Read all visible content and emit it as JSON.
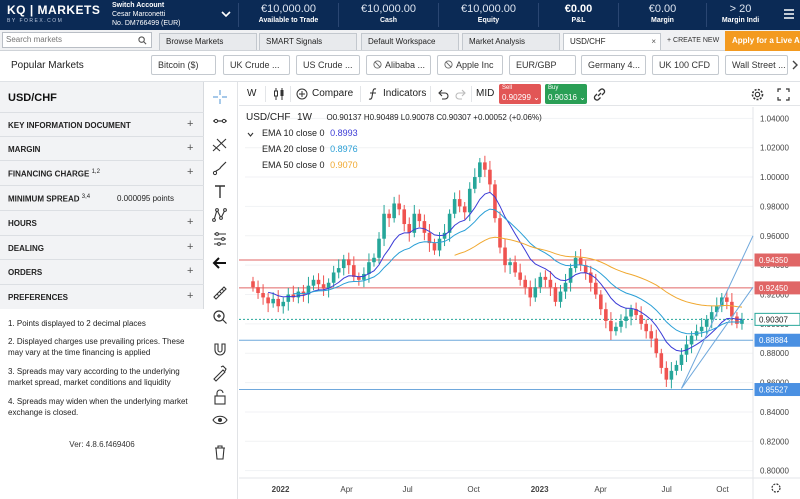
{
  "app": {
    "logo": "KQ | MARKETS",
    "logo_sub": "BY FOREX.COM"
  },
  "account": {
    "switch_label": "Switch Account",
    "name": "Cesar Marconetti",
    "number": "No. DM766499 (EUR)"
  },
  "metrics": [
    {
      "value": "€10,000.00",
      "label": "Available to Trade"
    },
    {
      "value": "€10,000.00",
      "label": "Cash"
    },
    {
      "value": "€10,000.00",
      "label": "Equity"
    },
    {
      "value": "€0.00",
      "label": "P&L"
    },
    {
      "value": "€0.00",
      "label": "Margin"
    },
    {
      "value": "> 20",
      "label": "Margin Indi"
    }
  ],
  "search": {
    "placeholder": "Search markets"
  },
  "tabs": [
    {
      "label": "Browse Markets"
    },
    {
      "label": "SMART Signals"
    },
    {
      "label": "Default Workspace"
    },
    {
      "label": "Market Analysis"
    },
    {
      "label": "USD/CHF",
      "close": "×"
    }
  ],
  "create_new": "+ CREATE NEW",
  "apply_button": "Apply for a Live A",
  "popular": {
    "title": "Popular Markets",
    "chips": [
      {
        "label": "Bitcoin ($)",
        "banned": false
      },
      {
        "label": "UK Crude ...",
        "banned": false
      },
      {
        "label": "US Crude ...",
        "banned": false
      },
      {
        "label": "Alibaba ...",
        "banned": true
      },
      {
        "label": "Apple Inc",
        "banned": true
      },
      {
        "label": "EUR/GBP",
        "banned": false
      },
      {
        "label": "Germany 4...",
        "banned": false
      },
      {
        "label": "UK 100 CFD",
        "banned": false
      },
      {
        "label": "Wall Street ...",
        "banned": false
      }
    ]
  },
  "left_panel": {
    "instrument": "USD/CHF",
    "sections": [
      {
        "label": "KEY INFORMATION DOCUMENT",
        "sup": ""
      },
      {
        "label": "MARGIN",
        "sup": ""
      },
      {
        "label": "FINANCING CHARGE",
        "sup": "1,2"
      },
      {
        "label": "MINIMUM SPREAD",
        "sup": "3,4",
        "value": "0.000095 points"
      },
      {
        "label": "HOURS",
        "sup": ""
      },
      {
        "label": "DEALING",
        "sup": ""
      },
      {
        "label": "ORDERS",
        "sup": ""
      },
      {
        "label": "PREFERENCES",
        "sup": ""
      }
    ],
    "notes": [
      "1. Points displayed to 2 decimal places",
      "2. Displayed charges use prevailing prices. These may vary at the time financing is applied",
      "3. Spreads may vary according to the underlying market spread, market conditions and liquidity",
      "4. Spreads may widen when the underlying market exchange is closed."
    ],
    "version": "Ver: 4.8.6.f469406"
  },
  "chart_toolbar": {
    "interval": "W",
    "compare": "Compare",
    "indicators": "Indicators",
    "mid": "MID",
    "sell_label": "Sell",
    "sell_price": "0.90299",
    "buy_label": "Buy",
    "buy_price": "0.90316"
  },
  "legend": {
    "symbol": "USD/CHF",
    "interval": "1W",
    "ohlc": "O0.90137 H0.90489 L0.90078 C0.90307 +0.00052 (+0.06%)",
    "emas": [
      {
        "label": "EMA 10 close 0",
        "value": "0.8993",
        "color": "#3b3bd6"
      },
      {
        "label": "EMA 20 close 0",
        "value": "0.8976",
        "color": "#2a9fd6"
      },
      {
        "label": "EMA 50 close 0",
        "value": "0.9070",
        "color": "#f0a830"
      }
    ]
  },
  "chart_data": {
    "type": "candlestick",
    "y_axis_ticks": [
      "1.04000",
      "1.02000",
      "1.00000",
      "0.98000",
      "0.96000",
      "0.94000",
      "0.92000",
      "0.90000",
      "0.88000",
      "0.86000",
      "0.84000",
      "0.82000",
      "0.80000"
    ],
    "ylim": [
      0.795,
      1.045
    ],
    "x_axis_ticks": [
      "2022",
      "Apr",
      "Jul",
      "Oct",
      "2023",
      "Apr",
      "Jul",
      "Oct"
    ],
    "price_tags": [
      {
        "value": "0.94350",
        "style": "red"
      },
      {
        "value": "0.92450",
        "style": "red"
      },
      {
        "value": "0.90307",
        "style": "blue"
      },
      {
        "value": "0.88884",
        "style": "blue"
      },
      {
        "value": "0.85527",
        "style": "blue"
      }
    ],
    "horizontal_lines": [
      {
        "y": 0.9435,
        "color": "#e06666"
      },
      {
        "y": 0.9245,
        "color": "#e06666"
      },
      {
        "y": 0.8888,
        "color": "#6fa8dc"
      },
      {
        "y": 0.8553,
        "color": "#6fa8dc"
      }
    ],
    "current_price": 0.90307,
    "colors": {
      "up": "#26a69a",
      "down": "#ef5350",
      "ema10": "#3b3bd6",
      "ema20": "#2a9fd6",
      "ema50": "#f0a830"
    },
    "closes": [
      0.925,
      0.921,
      0.918,
      0.914,
      0.917,
      0.912,
      0.915,
      0.92,
      0.918,
      0.922,
      0.92,
      0.926,
      0.93,
      0.927,
      0.924,
      0.928,
      0.935,
      0.938,
      0.944,
      0.94,
      0.932,
      0.93,
      0.934,
      0.942,
      0.945,
      0.958,
      0.975,
      0.972,
      0.982,
      0.978,
      0.968,
      0.962,
      0.975,
      0.97,
      0.962,
      0.955,
      0.95,
      0.958,
      0.962,
      0.975,
      0.985,
      0.98,
      0.976,
      0.992,
      1.0,
      1.01,
      1.005,
      0.995,
      0.972,
      0.952,
      0.94,
      0.942,
      0.935,
      0.93,
      0.925,
      0.918,
      0.925,
      0.932,
      0.93,
      0.925,
      0.915,
      0.922,
      0.928,
      0.938,
      0.945,
      0.94,
      0.935,
      0.928,
      0.92,
      0.91,
      0.902,
      0.895,
      0.898,
      0.902,
      0.905,
      0.91,
      0.906,
      0.9,
      0.895,
      0.89,
      0.88,
      0.87,
      0.862,
      0.868,
      0.872,
      0.879,
      0.886,
      0.892,
      0.895,
      0.898,
      0.903,
      0.908,
      0.912,
      0.918,
      0.915,
      0.905,
      0.9,
      0.903
    ]
  }
}
